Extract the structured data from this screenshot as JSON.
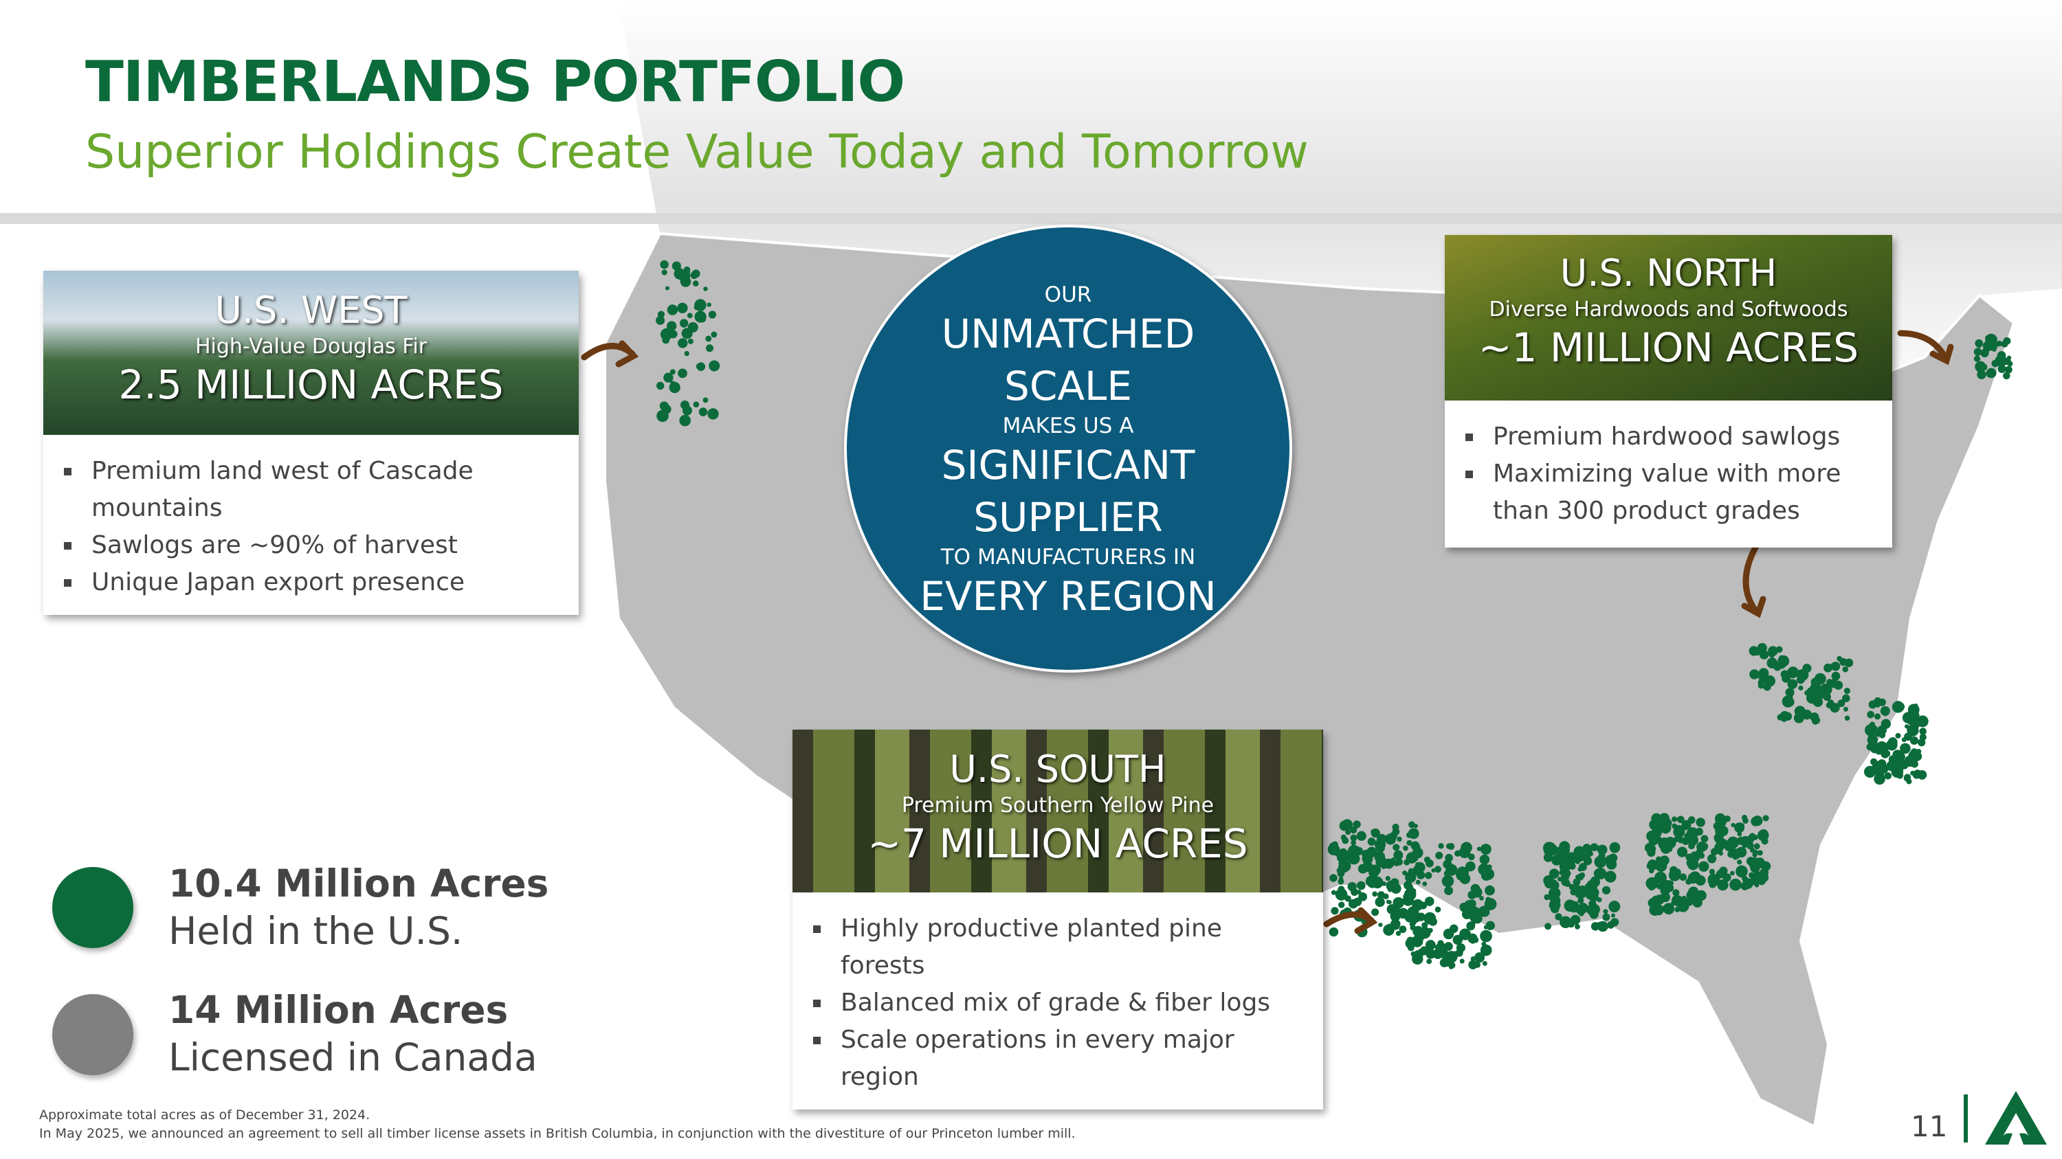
{
  "header": {
    "title": "TIMBERLANDS PORTFOLIO",
    "subtitle": "Superior Holdings Create Value Today and Tomorrow"
  },
  "colors": {
    "brand_green": "#0b6b3a",
    "subtitle_green": "#6aa82e",
    "circle_blue": "#0c5a7e",
    "map_gray": "#bdbdbd",
    "canada_gray": "#808080"
  },
  "regions": [
    {
      "name": "U.S. WEST",
      "tagline": "High-Value Douglas Fir",
      "acres": "2.5 MILLION ACRES",
      "bullets": [
        "Premium land west of Cascade mountains",
        "Sawlogs are ~90% of harvest",
        "Unique Japan export presence"
      ]
    },
    {
      "name": "U.S. NORTH",
      "tagline": "Diverse Hardwoods and Softwoods",
      "acres": "~1 MILLION ACRES",
      "bullets": [
        "Premium hardwood sawlogs",
        "Maximizing value with more than 300 product grades"
      ]
    },
    {
      "name": "U.S. SOUTH",
      "tagline": "Premium Southern Yellow Pine",
      "acres": "~7 MILLION ACRES",
      "bullets": [
        "Highly productive planted pine forests",
        "Balanced mix of grade & fiber logs",
        "Scale operations in every major region"
      ]
    }
  ],
  "circle": {
    "l1": "OUR",
    "l2": "UNMATCHED",
    "l3": "SCALE",
    "l4": "MAKES US A",
    "l5": "SIGNIFICANT",
    "l6": "SUPPLIER",
    "l7": "TO MANUFACTURERS IN",
    "l8": "EVERY REGION"
  },
  "legend": [
    {
      "value": "10.4 Million Acres",
      "label": "Held in the U.S.",
      "color": "#0b6b3a"
    },
    {
      "value": "14 Million Acres",
      "label": "Licensed in Canada",
      "color": "#808080"
    }
  ],
  "footer": {
    "note1": "Approximate total acres as of December 31, 2024.",
    "note2": "In May 2025, we announced an agreement to sell all timber license assets in British Columbia, in conjunction with the divestiture of our Princeton lumber mill.",
    "page": "11"
  }
}
